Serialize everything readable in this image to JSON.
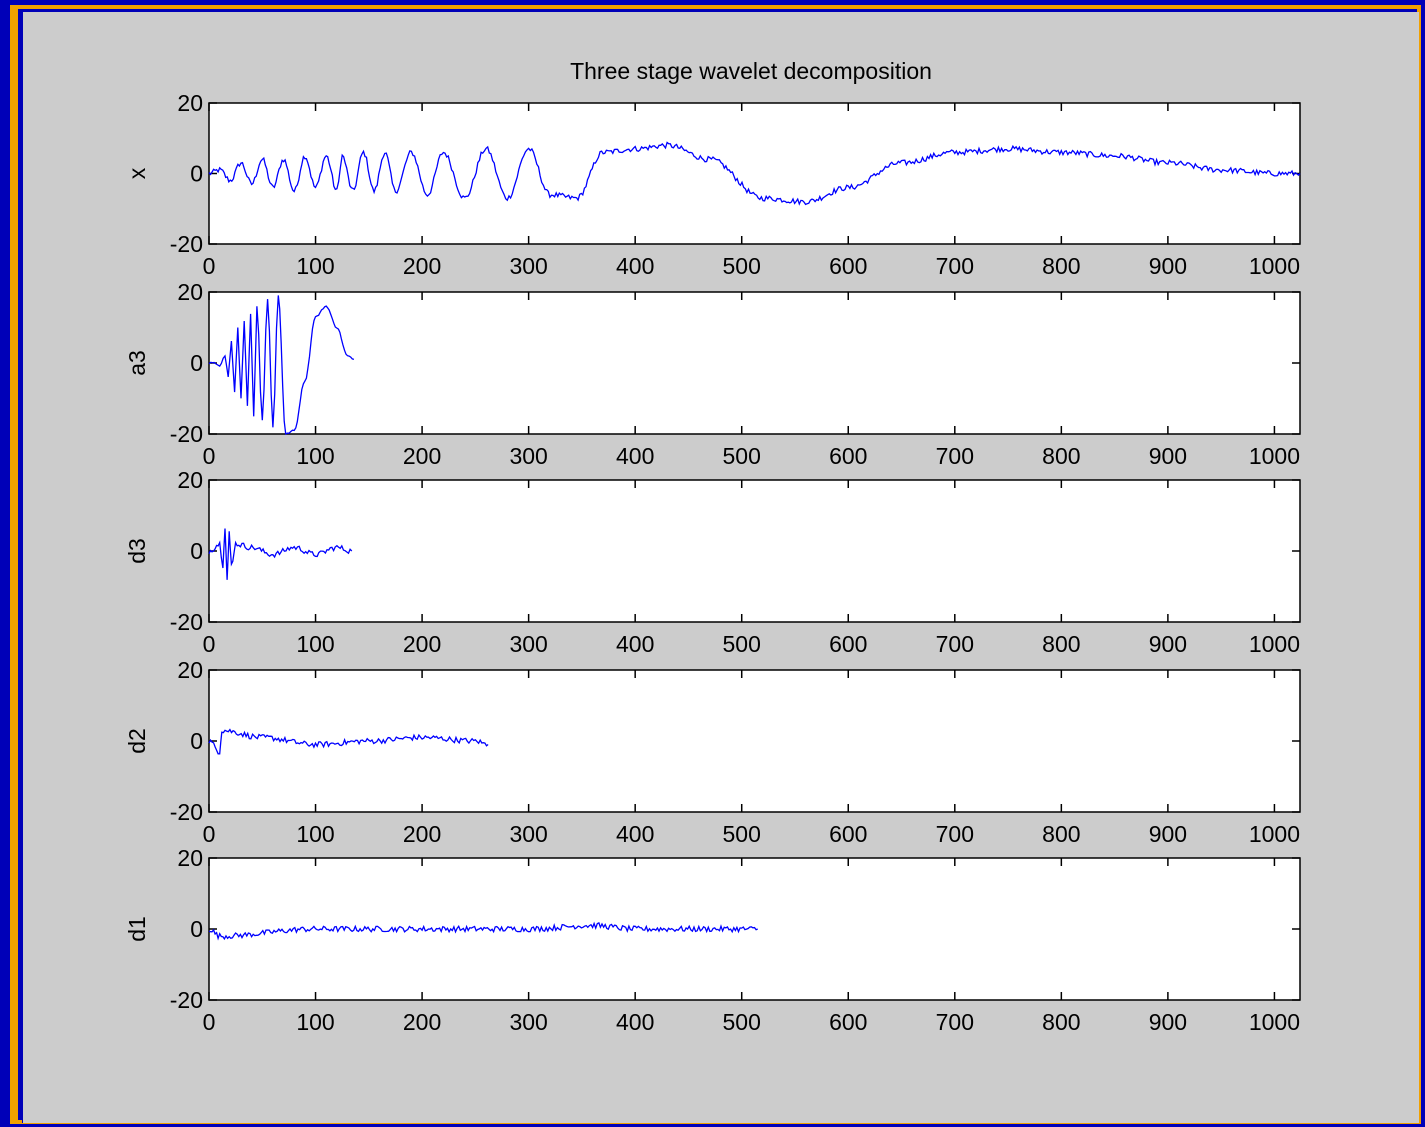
{
  "window": {
    "frame_color": "#0000b8",
    "border_color": "#f0a000",
    "figure_bg": "#cccccc"
  },
  "chart_data": {
    "type": "line",
    "title": "Three stage wavelet decomposition",
    "line_color": "#0000ff",
    "grid": false,
    "subplots": [
      {
        "ylabel": "x",
        "xlim": [
          0,
          1024
        ],
        "ylim": [
          -20,
          20
        ],
        "xticks": [
          "0",
          "100",
          "200",
          "300",
          "400",
          "500",
          "600",
          "700",
          "800",
          "900",
          "1000"
        ],
        "yticks": [
          "20",
          "0",
          "-20"
        ],
        "series": [
          {
            "description_points": [
              [
                0,
                0
              ],
              [
                10,
                1
              ],
              [
                20,
                -2
              ],
              [
                30,
                3
              ],
              [
                40,
                -3
              ],
              [
                50,
                4
              ],
              [
                60,
                -4
              ],
              [
                70,
                4
              ],
              [
                80,
                -5
              ],
              [
                90,
                5
              ],
              [
                100,
                -4
              ],
              [
                110,
                5
              ],
              [
                120,
                -5
              ],
              [
                125,
                5
              ],
              [
                135,
                -5
              ],
              [
                145,
                6
              ],
              [
                155,
                -5
              ],
              [
                165,
                6
              ],
              [
                175,
                -5
              ],
              [
                190,
                6
              ],
              [
                205,
                -6
              ],
              [
                220,
                6
              ],
              [
                240,
                -7
              ],
              [
                260,
                7
              ],
              [
                280,
                -7
              ],
              [
                300,
                7
              ],
              [
                320,
                -6
              ],
              [
                345,
                -7
              ],
              [
                370,
                6
              ],
              [
                400,
                7
              ],
              [
                430,
                8
              ],
              [
                470,
                4
              ],
              [
                520,
                -7
              ],
              [
                560,
                -8
              ],
              [
                600,
                -4
              ],
              [
                650,
                3
              ],
              [
                700,
                6
              ],
              [
                750,
                7
              ],
              [
                800,
                6
              ],
              [
                850,
                5
              ],
              [
                900,
                3
              ],
              [
                950,
                1
              ],
              [
                1000,
                0
              ],
              [
                1024,
                0
              ]
            ]
          }
        ]
      },
      {
        "ylabel": "a3",
        "xlim": [
          0,
          1024
        ],
        "ylim": [
          -20,
          20
        ],
        "xticks": [
          "0",
          "100",
          "200",
          "300",
          "400",
          "500",
          "600",
          "700",
          "800",
          "900",
          "1000"
        ],
        "yticks": [
          "20",
          "0",
          "-20"
        ],
        "series": [
          {
            "description_points": [
              [
                0,
                0
              ],
              [
                5,
                0
              ],
              [
                10,
                -1
              ],
              [
                15,
                2
              ],
              [
                18,
                -4
              ],
              [
                21,
                6
              ],
              [
                24,
                -8
              ],
              [
                27,
                10
              ],
              [
                30,
                -10
              ],
              [
                33,
                12
              ],
              [
                36,
                -12
              ],
              [
                39,
                14
              ],
              [
                42,
                -15
              ],
              [
                45,
                16
              ],
              [
                50,
                -16
              ],
              [
                55,
                18
              ],
              [
                60,
                -18
              ],
              [
                65,
                19
              ],
              [
                72,
                -20
              ],
              [
                80,
                -19
              ],
              [
                90,
                -5
              ],
              [
                100,
                13
              ],
              [
                110,
                16
              ],
              [
                120,
                10
              ],
              [
                130,
                2
              ],
              [
                136,
                1
              ]
            ]
          }
        ]
      },
      {
        "ylabel": "d3",
        "xlim": [
          0,
          1024
        ],
        "ylim": [
          -20,
          20
        ],
        "xticks": [
          "0",
          "100",
          "200",
          "300",
          "400",
          "500",
          "600",
          "700",
          "800",
          "900",
          "1000"
        ],
        "yticks": [
          "20",
          "0",
          "-20"
        ],
        "series": [
          {
            "description_points": [
              [
                0,
                0
              ],
              [
                10,
                2
              ],
              [
                13,
                -4
              ],
              [
                15,
                7
              ],
              [
                17,
                -8
              ],
              [
                19,
                5
              ],
              [
                21,
                -4
              ],
              [
                25,
                2
              ],
              [
                40,
                1
              ],
              [
                60,
                -1
              ],
              [
                80,
                1
              ],
              [
                100,
                -1
              ],
              [
                120,
                1
              ],
              [
                134,
                0
              ]
            ]
          }
        ]
      },
      {
        "ylabel": "d2",
        "xlim": [
          0,
          1024
        ],
        "ylim": [
          -20,
          20
        ],
        "xticks": [
          "0",
          "100",
          "200",
          "300",
          "400",
          "500",
          "600",
          "700",
          "800",
          "900",
          "1000"
        ],
        "yticks": [
          "20",
          "0",
          "-20"
        ],
        "series": [
          {
            "description_points": [
              [
                0,
                0
              ],
              [
                10,
                -3
              ],
              [
                12,
                3
              ],
              [
                50,
                1
              ],
              [
                100,
                -1
              ],
              [
                150,
                0
              ],
              [
                200,
                1
              ],
              [
                250,
                0
              ],
              [
                262,
                -1
              ]
            ]
          }
        ]
      },
      {
        "ylabel": "d1",
        "xlim": [
          0,
          1024
        ],
        "ylim": [
          -20,
          20
        ],
        "xticks": [
          "0",
          "100",
          "200",
          "300",
          "400",
          "500",
          "600",
          "700",
          "800",
          "900",
          "1000"
        ],
        "yticks": [
          "20",
          "0",
          "-20"
        ],
        "series": [
          {
            "description_points": [
              [
                0,
                0
              ],
              [
                10,
                -2
              ],
              [
                100,
                0
              ],
              [
                200,
                0
              ],
              [
                300,
                0
              ],
              [
                360,
                1
              ],
              [
                400,
                0
              ],
              [
                500,
                0
              ],
              [
                515,
                0
              ]
            ]
          }
        ]
      }
    ]
  }
}
